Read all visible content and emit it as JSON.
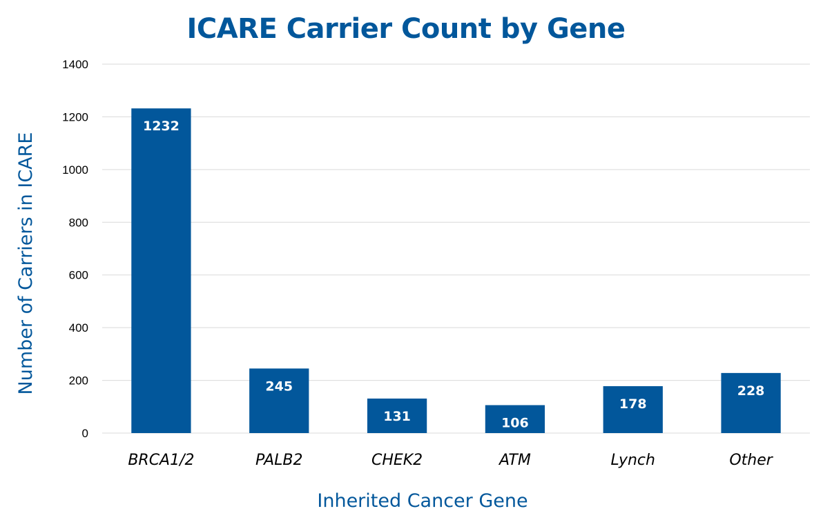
{
  "chart_data": {
    "type": "bar",
    "title": "ICARE Carrier Count by Gene",
    "xlabel": "Inherited Cancer Gene",
    "ylabel": "Number of Carriers in ICARE",
    "categories": [
      "BRCA1/2",
      "PALB2",
      "CHEK2",
      "ATM",
      "Lynch",
      "Other"
    ],
    "values": [
      1232,
      245,
      131,
      106,
      178,
      228
    ],
    "data_labels": [
      "1232",
      "245",
      "131",
      "106",
      "178",
      "228"
    ],
    "ylim": [
      0,
      1400
    ],
    "yticks": [
      0,
      200,
      400,
      600,
      800,
      1000,
      1200,
      1400
    ],
    "ytick_labels": [
      "0",
      "200",
      "400",
      "600",
      "800",
      "1000",
      "1200",
      "1400"
    ],
    "grid": true,
    "legend": "none",
    "colors": {
      "bar": "#02579B",
      "title": "#02579B",
      "axis_title": "#02579B",
      "grid": "#D9D9D9",
      "data_label": "#FFFFFF"
    }
  }
}
